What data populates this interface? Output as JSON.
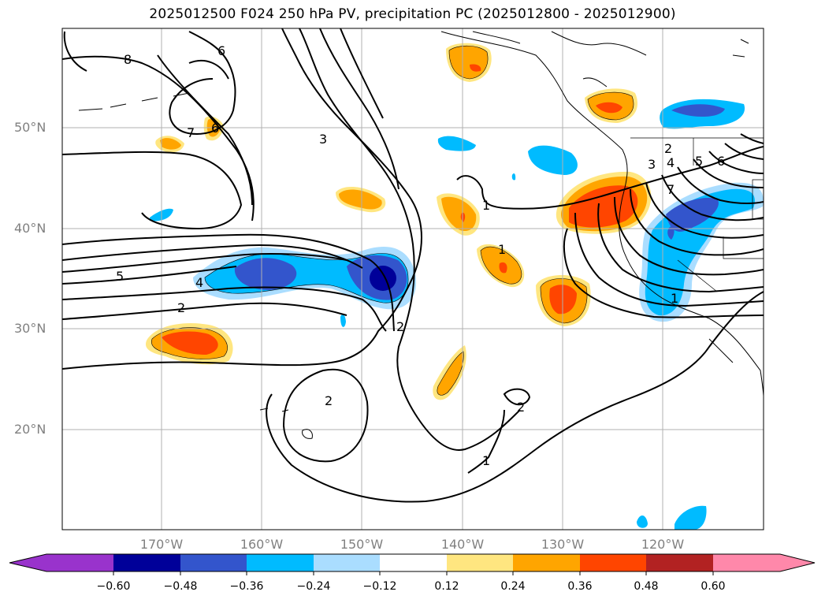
{
  "title": "2025012500 F024 250 hPa PV, precipitation PC (2025012800 - 2025012900)",
  "axes": {
    "lat_labels": [
      "50°N",
      "40°N",
      "30°N",
      "20°N"
    ],
    "lon_labels": [
      "170°W",
      "160°W",
      "150°W",
      "140°W",
      "130°W",
      "120°W"
    ]
  },
  "colorbar": {
    "ticks": [
      "−0.60",
      "−0.48",
      "−0.36",
      "−0.24",
      "−0.12",
      "0.12",
      "0.24",
      "0.36",
      "0.48",
      "0.60"
    ],
    "colors": [
      "#9933cc",
      "#000099",
      "#3355cc",
      "#00bbff",
      "#aaddff",
      "#ffffff",
      "#ffe680",
      "#ffa500",
      "#ff4500",
      "#b22222",
      "#ff88aa"
    ],
    "extend": "both"
  },
  "pv_contour_labels": [
    "8",
    "6",
    "7",
    "6",
    "3",
    "5",
    "4",
    "2",
    "2",
    "1",
    "1",
    "2",
    "2",
    "1",
    "2",
    "3",
    "4",
    "5",
    "6",
    "7",
    "1"
  ],
  "colors": {
    "map_bg": "#ffffff",
    "gridline": "#b0b0b0",
    "tick_label": "#808080"
  }
}
